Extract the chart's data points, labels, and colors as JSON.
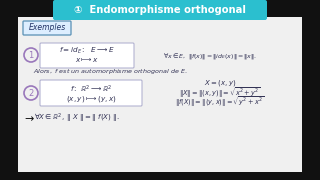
{
  "title": "①  Endomorphisme orthogonal",
  "title_bg": "#2bbfcf",
  "title_color": "white",
  "bg_color": "#f0f0f0",
  "outer_bg": "#111111",
  "exemples_label": "Exemples",
  "exemples_bg": "#ddeeff",
  "exemples_border": "#6699bb",
  "text_color": "#333355",
  "circle_color": "#9977bb"
}
